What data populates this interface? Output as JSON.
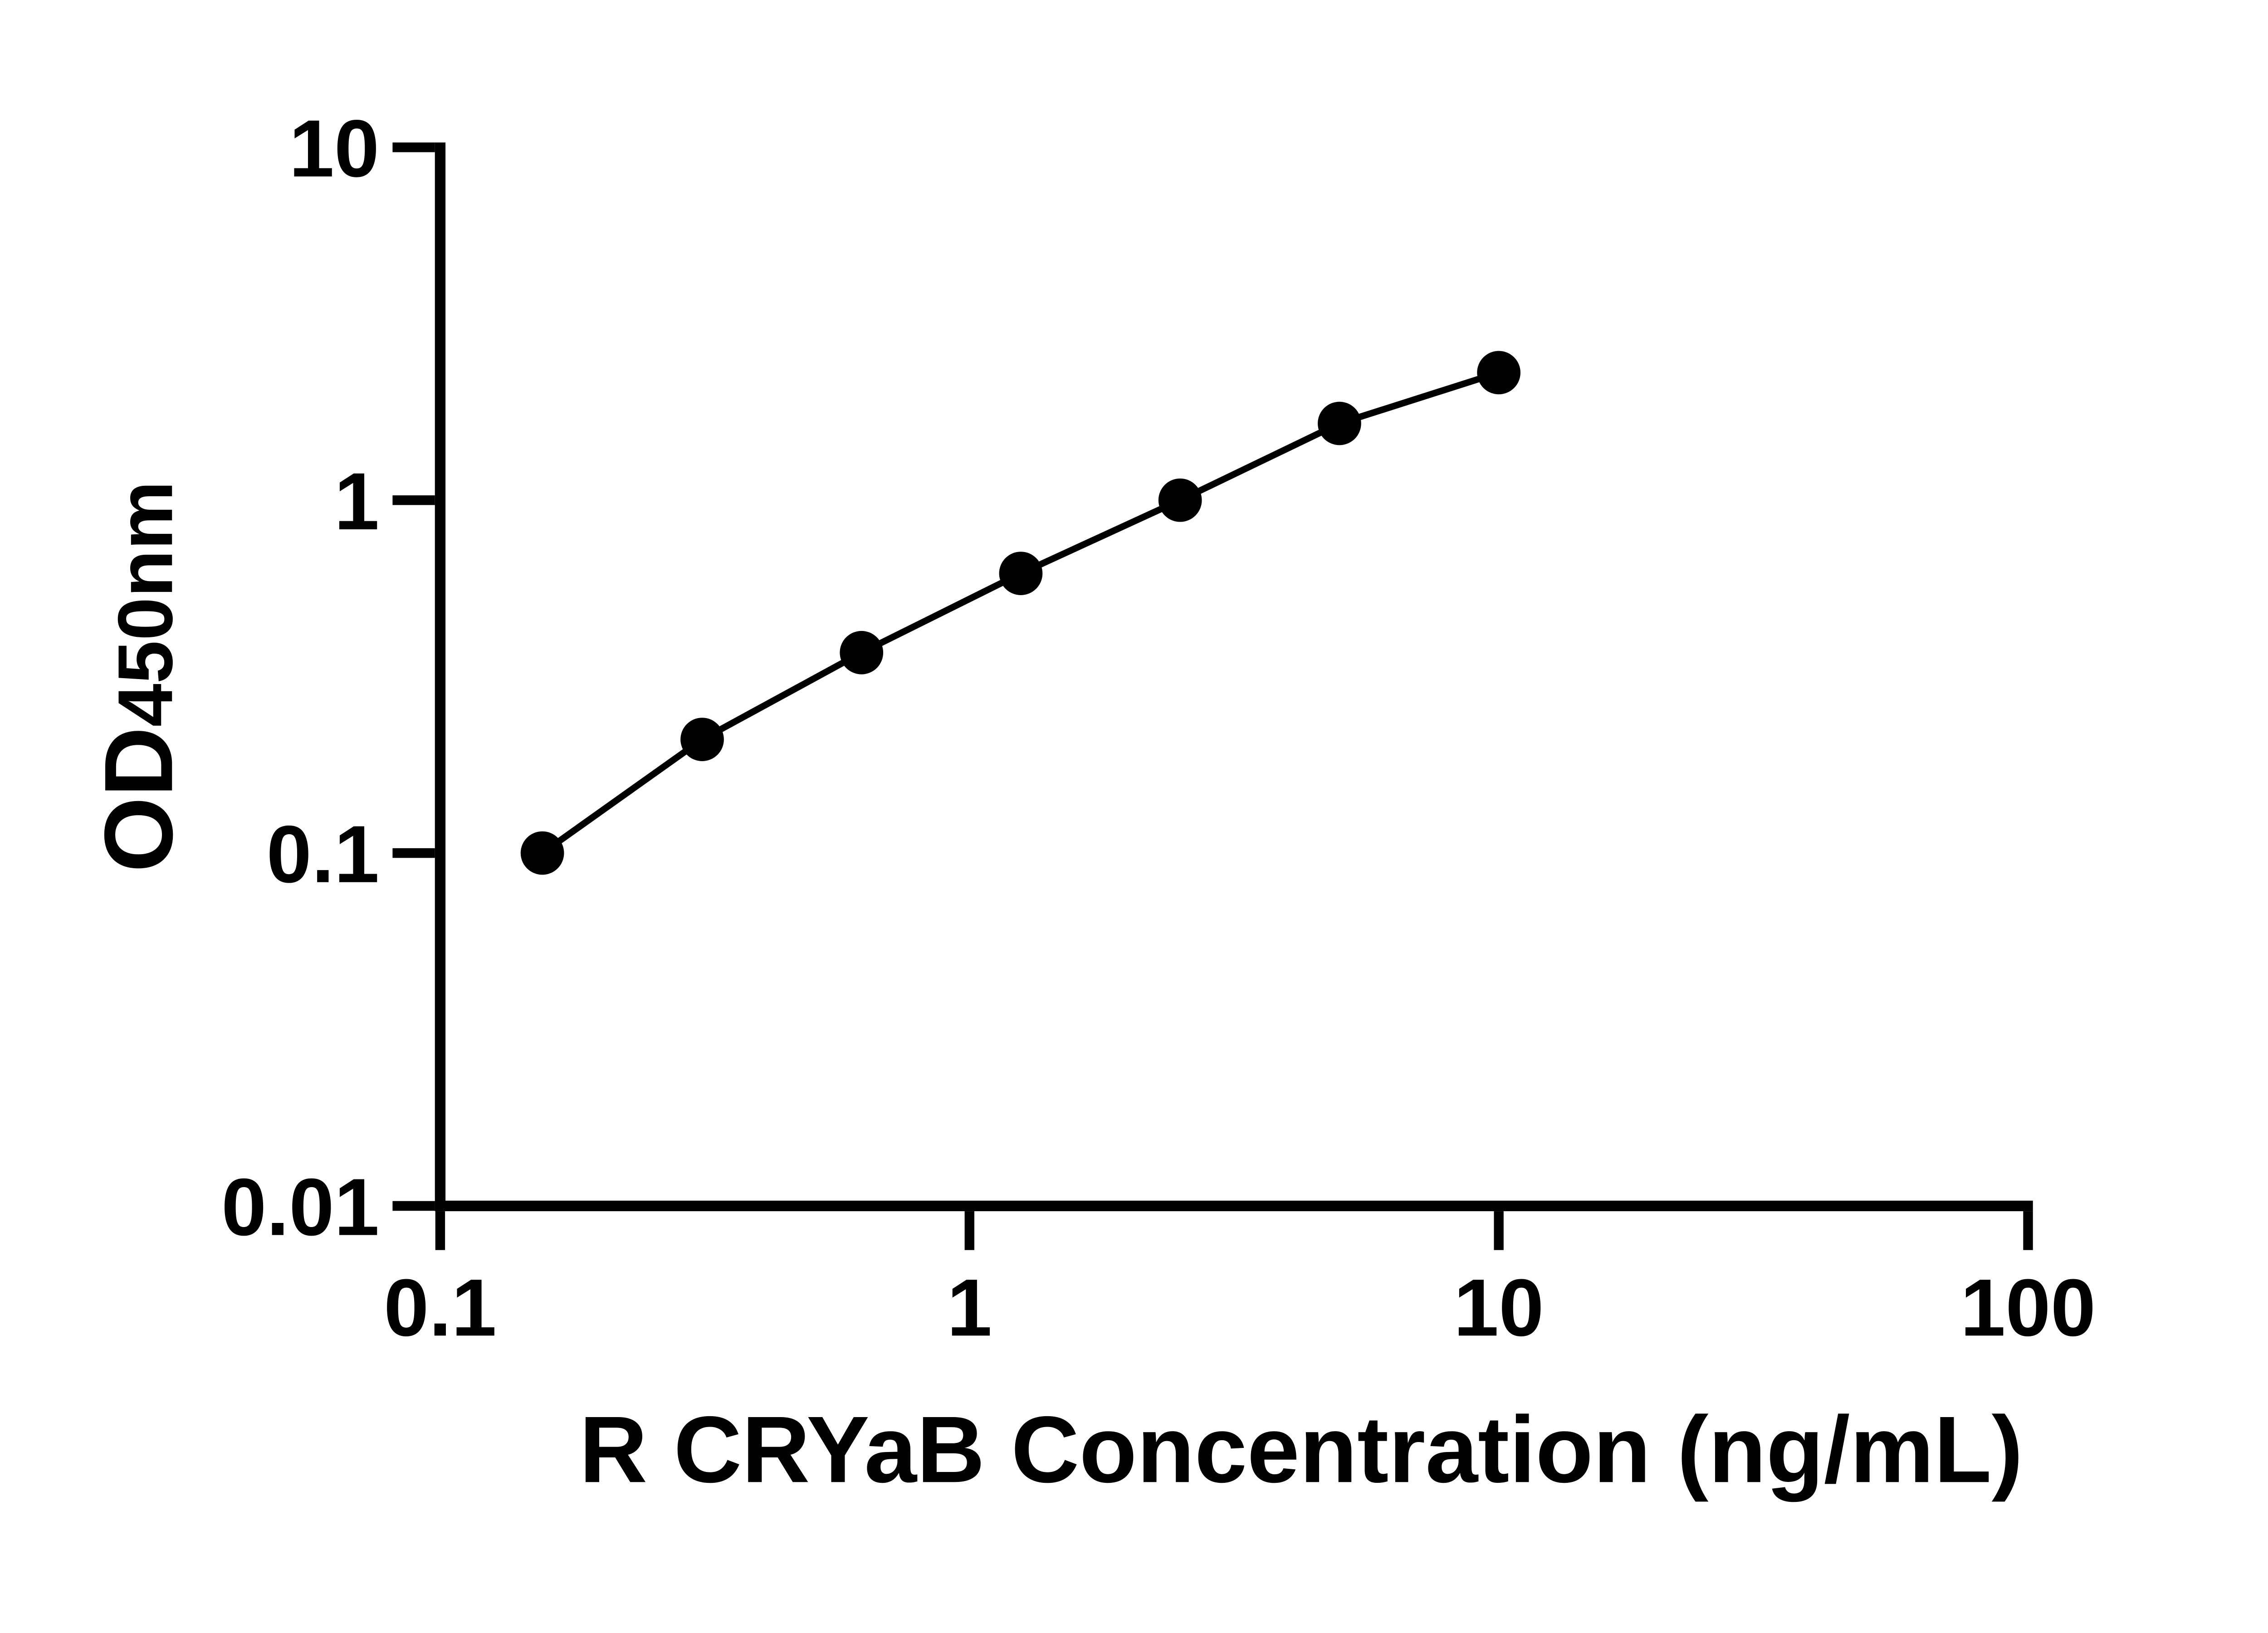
{
  "figure": {
    "background_color": "#ffffff",
    "ink_color": "#000000"
  },
  "axes": {
    "x": {
      "title": "R CRYaB Concentration (ng/mL)",
      "scale": "log",
      "tick_labels": [
        "0.1",
        "1",
        "10",
        "100"
      ]
    },
    "y": {
      "label_main": "OD",
      "label_sub": "450nm",
      "scale": "log",
      "tick_labels": [
        "10",
        "1",
        "0.1",
        "0.01"
      ]
    }
  },
  "chart_data": {
    "type": "scatter",
    "title": "",
    "xlabel": "R CRYaB Concentration (ng/mL)",
    "ylabel": "OD450nm",
    "x_scale": "log",
    "y_scale": "log",
    "xlim": [
      0.1,
      100
    ],
    "ylim": [
      0.01,
      10
    ],
    "x_ticks": [
      0.1,
      1,
      10,
      100
    ],
    "y_ticks": [
      10,
      1,
      0.1,
      0.01
    ],
    "grid": false,
    "legend": "none",
    "marker": "filled-circle",
    "marker_color": "#000000",
    "line_style": "solid",
    "series": [
      {
        "x": [
          0.156,
          0.3125,
          0.625,
          1.25,
          2.5,
          5,
          10
        ],
        "y": [
          0.1,
          0.21,
          0.37,
          0.62,
          1.0,
          1.65,
          2.3
        ]
      }
    ]
  }
}
